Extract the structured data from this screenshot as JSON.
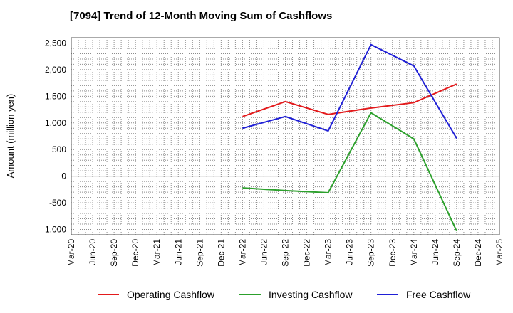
{
  "chart_data": {
    "type": "line",
    "title": "[7094]  Trend of 12-Month Moving Sum of Cashflows",
    "ylabel": "Amount (million yen)",
    "xlabel": "",
    "categories": [
      "Mar-20",
      "Jun-20",
      "Sep-20",
      "Dec-20",
      "Mar-21",
      "Jun-21",
      "Sep-21",
      "Dec-21",
      "Mar-22",
      "Jun-22",
      "Sep-22",
      "Dec-22",
      "Mar-23",
      "Jun-23",
      "Sep-23",
      "Dec-23",
      "Mar-24",
      "Jun-24",
      "Sep-24",
      "Dec-24",
      "Mar-25"
    ],
    "ylim": [
      -1100,
      2600
    ],
    "yticks": [
      -1000,
      -500,
      0,
      500,
      1000,
      1500,
      2000,
      2500
    ],
    "ytick_labels": [
      "-1,000",
      "-500",
      "0",
      "500",
      "1,000",
      "1,500",
      "2,000",
      "2,500"
    ],
    "grid": true,
    "legend_position": "bottom",
    "series": [
      {
        "name": "Operating Cashflow",
        "color": "#e31a1c",
        "points": [
          [
            "Mar-22",
            1120
          ],
          [
            "Sep-22",
            1400
          ],
          [
            "Mar-23",
            1160
          ],
          [
            "Sep-23",
            1280
          ],
          [
            "Mar-24",
            1380
          ],
          [
            "Sep-24",
            1730
          ]
        ]
      },
      {
        "name": "Investing Cashflow",
        "color": "#2ca02c",
        "points": [
          [
            "Mar-22",
            -220
          ],
          [
            "Sep-22",
            -270
          ],
          [
            "Mar-23",
            -310
          ],
          [
            "Sep-23",
            1190
          ],
          [
            "Mar-24",
            700
          ],
          [
            "Sep-24",
            -1030
          ]
        ]
      },
      {
        "name": "Free Cashflow",
        "color": "#1f1fd6",
        "points": [
          [
            "Mar-22",
            900
          ],
          [
            "Sep-22",
            1120
          ],
          [
            "Mar-23",
            850
          ],
          [
            "Sep-23",
            2470
          ],
          [
            "Mar-24",
            2070
          ],
          [
            "Sep-24",
            710
          ]
        ]
      }
    ]
  }
}
